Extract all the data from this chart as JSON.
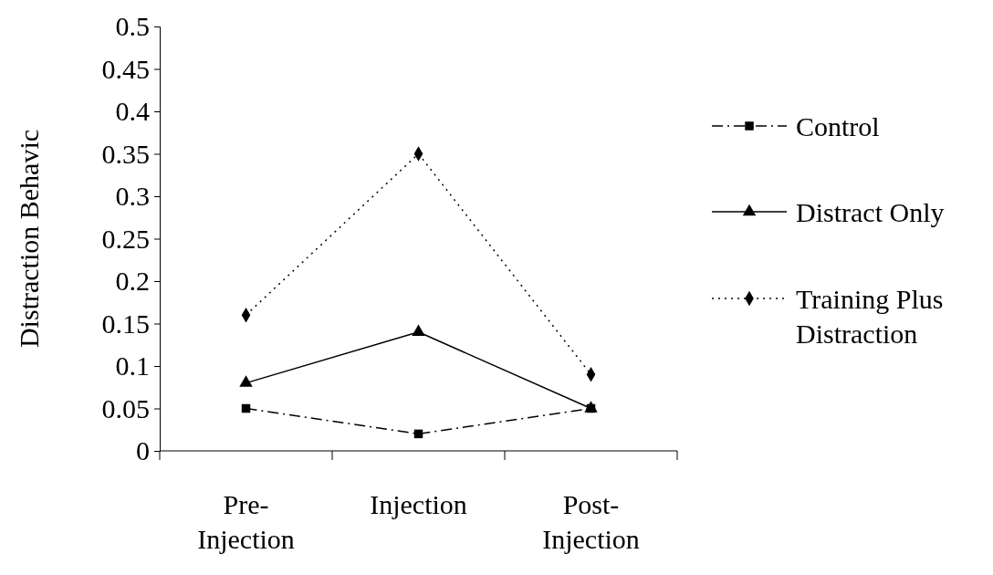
{
  "chart_data": {
    "type": "line",
    "ylabel": "Distraction Behavic",
    "categories": [
      "Pre-Injection",
      "Injection",
      "Post-Injection"
    ],
    "series": [
      {
        "name": "Control",
        "color": "#000000",
        "values": [
          0.05,
          0.02,
          0.05
        ],
        "line_style": "dashdot",
        "marker": "square"
      },
      {
        "name": "Distract Only",
        "color": "#000000",
        "values": [
          0.08,
          0.14,
          0.05
        ],
        "line_style": "solid",
        "marker": "triangle"
      },
      {
        "name": "Training Plus Distraction",
        "color": "#000000",
        "values": [
          0.16,
          0.35,
          0.09
        ],
        "line_style": "dotted",
        "marker": "diamond"
      }
    ],
    "ylim": [
      0,
      0.5
    ],
    "yticks": [
      0,
      0.05,
      0.1,
      0.15,
      0.2,
      0.25,
      0.3,
      0.35,
      0.4,
      0.45,
      0.5
    ],
    "grid": false,
    "legend": "right"
  }
}
